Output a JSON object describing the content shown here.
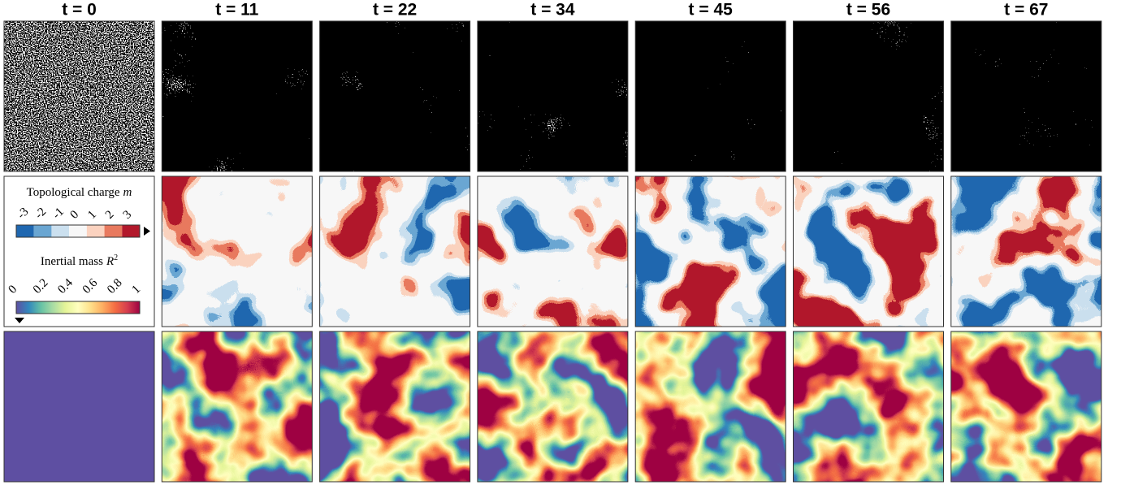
{
  "columns": [
    "t = 0",
    "t = 11",
    "t = 22",
    "t = 34",
    "t = 45",
    "t = 56",
    "t = 67"
  ],
  "legend": {
    "charge_label": "Topological charge",
    "charge_symbol": "m",
    "charge_ticks": [
      -3,
      -2,
      -1,
      0,
      1,
      2,
      3
    ],
    "charge_colors": [
      "#1f67b0",
      "#6aa6d2",
      "#cbe0ef",
      "#f7f7f7",
      "#fbd2bf",
      "#e8795e",
      "#b2182b"
    ],
    "mass_label": "Inertial mass",
    "mass_symbol": "R",
    "mass_exponent": "2",
    "mass_ticks": [
      0,
      0.2,
      0.4,
      0.6,
      0.8,
      1
    ],
    "mass_colors": [
      "#5e4fa2",
      "#3288bd",
      "#66c2a5",
      "#abdda4",
      "#e6f598",
      "#ffffbf",
      "#fee08b",
      "#fdae61",
      "#f46d43",
      "#d53e4f",
      "#9e0142"
    ]
  }
}
